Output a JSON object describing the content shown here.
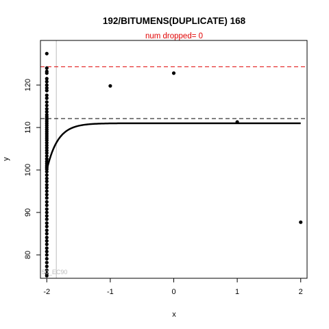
{
  "chart_data": {
    "type": "scatter",
    "title": "192/BITUMENS(DUPLICATE) 168",
    "subtitle": "num dropped= 0",
    "xlabel": "x",
    "ylabel": "y",
    "xlim": [
      -2.1,
      2.1
    ],
    "ylim": [
      74.5,
      130.5
    ],
    "x_ticks": [
      -2,
      -1,
      0,
      1,
      2
    ],
    "y_ticks": [
      80,
      90,
      100,
      110,
      120
    ],
    "grid": false,
    "colors": {
      "points": "#000000",
      "red_line": "#e00000",
      "black_line": "#000000",
      "vline": "#bbbbbb",
      "subtitle": "#e00000"
    },
    "hlines": [
      {
        "y": 124.3,
        "color": "#e00000",
        "style": "dashed"
      },
      {
        "y": 112.1,
        "color": "#000000",
        "style": "dashed"
      }
    ],
    "vline": {
      "x": -1.85,
      "color": "#bbbbbb"
    },
    "annotation": {
      "text": "50_EC90",
      "x": -2.08,
      "y": 75.5
    },
    "fitted_curve": {
      "x0": -2.0,
      "y0": 100.0,
      "asymptote": 111.0,
      "rate": 5.8,
      "x_end": 2.0
    },
    "points_scatter": [
      {
        "x": -1.0,
        "y": 119.8
      },
      {
        "x": 0.0,
        "y": 122.8
      },
      {
        "x": 1.0,
        "y": 111.3
      },
      {
        "x": 2.0,
        "y": 87.7
      }
    ],
    "points_column_x": -2.0,
    "points_column_y": [
      127.4,
      124.0,
      123.2,
      122.8,
      121.5,
      120.8,
      120.0,
      119.3,
      118.7,
      117.6,
      116.9,
      116.0,
      115.2,
      114.4,
      113.7,
      113.0,
      112.5,
      112.0,
      111.5,
      111.0,
      110.5,
      110.0,
      109.5,
      109.0,
      108.5,
      108.0,
      107.5,
      107.0,
      106.4,
      105.8,
      105.2,
      104.6,
      104.0,
      103.3,
      102.6,
      102.0,
      101.5,
      101.0,
      100.6,
      100.2,
      99.6,
      98.8,
      98.0,
      97.3,
      96.5,
      95.8,
      95.0,
      94.2,
      93.4,
      92.5,
      91.7,
      90.8,
      90.0,
      89.2,
      88.4,
      87.5,
      86.7,
      85.8,
      85.0,
      84.1,
      83.3,
      82.5,
      81.6,
      80.8,
      80.0,
      79.1,
      78.2,
      77.3,
      76.4,
      75.6,
      75.1
    ]
  }
}
